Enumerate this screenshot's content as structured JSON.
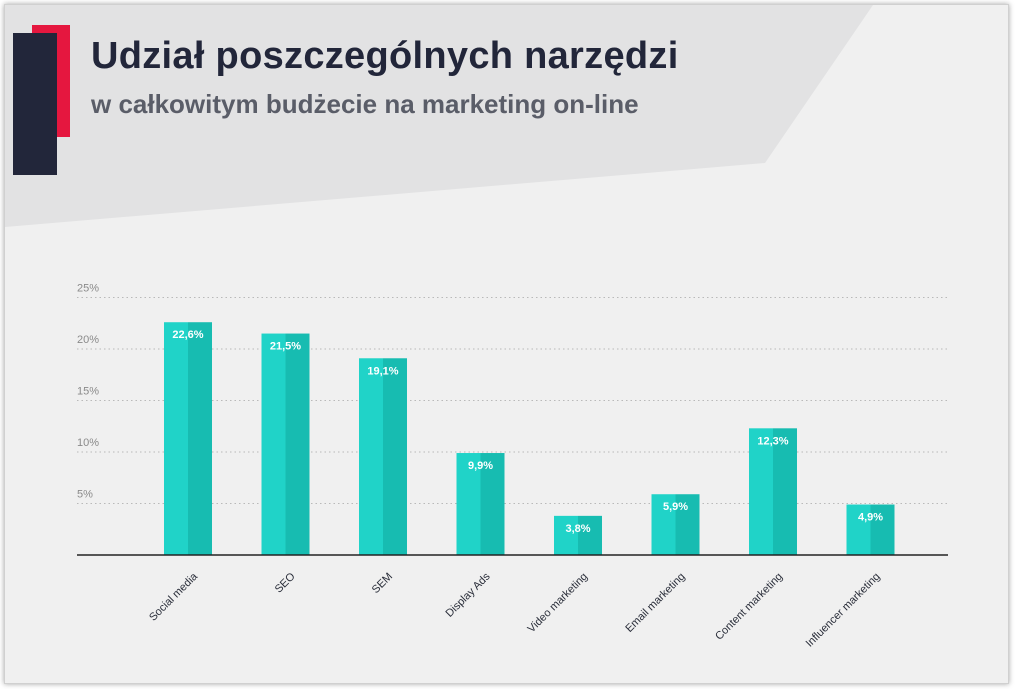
{
  "header": {
    "title": "Udział poszczególnych narzędzi",
    "subtitle": "w całkowitym budżecie na marketing on-line"
  },
  "colors": {
    "accent_red": "#e5173f",
    "dark_block": "#22263a",
    "bar_light": "#20d3c8",
    "bar_dark": "#17bcb1",
    "axis": "#222222"
  },
  "chart_data": {
    "type": "bar",
    "categories": [
      "Social media",
      "SEO",
      "SEM",
      "Display Ads",
      "Video marketing",
      "Email marketing",
      "Content marketing",
      "Influencer marketing"
    ],
    "values": [
      22.6,
      21.5,
      19.1,
      9.9,
      3.8,
      5.9,
      12.3,
      4.9
    ],
    "value_labels": [
      "22,6%",
      "21,5%",
      "19,1%",
      "9,9%",
      "3,8%",
      "5,9%",
      "12,3%",
      "4,9%"
    ],
    "yticks": [
      5,
      10,
      15,
      20,
      25
    ],
    "ytick_labels": [
      "5%",
      "10%",
      "15%",
      "20%",
      "25%"
    ],
    "ylim": [
      0,
      25
    ],
    "grid": true
  }
}
